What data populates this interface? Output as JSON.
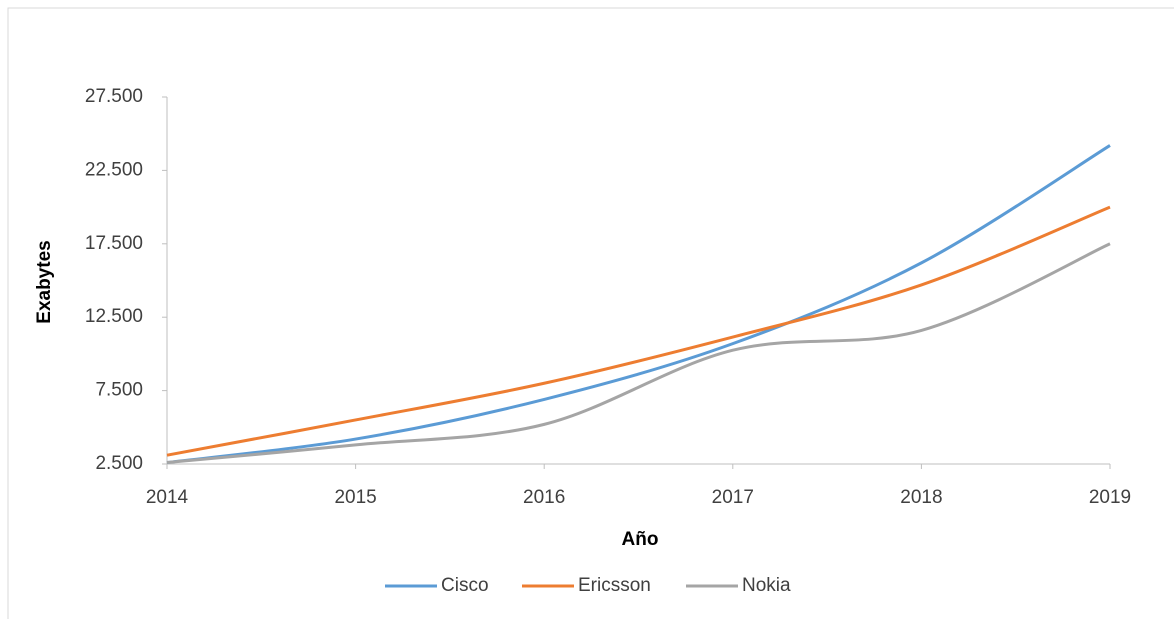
{
  "chart_data": {
    "type": "line",
    "x_label": "Año",
    "y_label": "Exabytes",
    "x": [
      2014,
      2015,
      2016,
      2017,
      2018,
      2019
    ],
    "xlim": [
      2014,
      2019
    ],
    "xticks": [
      2014,
      2015,
      2016,
      2017,
      2018,
      2019
    ],
    "ylim": [
      2500,
      27500
    ],
    "yticks": [
      {
        "value": 2500,
        "label": "2.500"
      },
      {
        "value": 7500,
        "label": "7.500"
      },
      {
        "value": 12500,
        "label": "12.500"
      },
      {
        "value": 17500,
        "label": "17.500"
      },
      {
        "value": 22500,
        "label": "22.500"
      },
      {
        "value": 27500,
        "label": "27.500"
      }
    ],
    "grid": false,
    "legend": "bottom",
    "series": [
      {
        "name": "Cisco",
        "color": "#5b9bd5",
        "values": [
          2600,
          4200,
          6900,
          10700,
          16200,
          24200
        ]
      },
      {
        "name": "Ericsson",
        "color": "#ed7d31",
        "values": [
          3100,
          5500,
          8000,
          11150,
          14700,
          20000
        ]
      },
      {
        "name": "Nokia",
        "color": "#a5a5a5",
        "values": [
          2600,
          3800,
          5200,
          10250,
          11600,
          17500
        ]
      }
    ]
  }
}
